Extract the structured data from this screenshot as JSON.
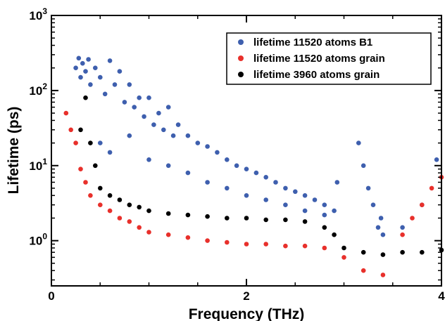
{
  "chart_data": {
    "type": "scatter",
    "xlabel": "Frequency (THz)",
    "ylabel": "Lifetime (ps)",
    "xlim": [
      0,
      4
    ],
    "ylim": [
      0.25,
      1000
    ],
    "y_scale": "log",
    "grid": false,
    "legend_position": "top-right",
    "x_ticks": [
      {
        "value": 0,
        "label": "0"
      },
      {
        "value": 2,
        "label": "2"
      },
      {
        "value": 4,
        "label": "4"
      }
    ],
    "y_ticks": [
      {
        "value": 1,
        "base": "10",
        "exp": "0"
      },
      {
        "value": 10,
        "base": "10",
        "exp": "1"
      },
      {
        "value": 100,
        "base": "10",
        "exp": "2"
      },
      {
        "value": 1000,
        "base": "10",
        "exp": "3"
      }
    ],
    "series": [
      {
        "name": "lifetime 11520 atoms B1",
        "color": "#3e5fae",
        "points": [
          [
            0.25,
            200
          ],
          [
            0.28,
            270
          ],
          [
            0.3,
            150
          ],
          [
            0.32,
            230
          ],
          [
            0.35,
            180
          ],
          [
            0.38,
            260
          ],
          [
            0.4,
            120
          ],
          [
            0.45,
            200
          ],
          [
            0.5,
            150
          ],
          [
            0.55,
            90
          ],
          [
            0.6,
            250
          ],
          [
            0.65,
            120
          ],
          [
            0.7,
            180
          ],
          [
            0.75,
            70
          ],
          [
            0.8,
            120
          ],
          [
            0.85,
            60
          ],
          [
            0.9,
            80
          ],
          [
            0.95,
            45
          ],
          [
            1.0,
            80
          ],
          [
            1.05,
            35
          ],
          [
            1.1,
            50
          ],
          [
            1.15,
            30
          ],
          [
            1.2,
            60
          ],
          [
            1.25,
            25
          ],
          [
            1.3,
            35
          ],
          [
            1.4,
            25
          ],
          [
            1.5,
            20
          ],
          [
            1.6,
            18
          ],
          [
            1.7,
            15
          ],
          [
            1.8,
            12
          ],
          [
            1.9,
            10
          ],
          [
            2.0,
            9
          ],
          [
            2.1,
            8
          ],
          [
            2.2,
            7
          ],
          [
            2.3,
            6
          ],
          [
            2.4,
            5
          ],
          [
            2.5,
            4.5
          ],
          [
            2.6,
            4
          ],
          [
            2.7,
            3.5
          ],
          [
            2.8,
            3
          ],
          [
            2.9,
            2.5
          ],
          [
            2.93,
            6
          ],
          [
            0.5,
            20
          ],
          [
            0.6,
            15
          ],
          [
            0.8,
            25
          ],
          [
            1.0,
            12
          ],
          [
            1.2,
            10
          ],
          [
            1.4,
            8
          ],
          [
            1.6,
            6
          ],
          [
            1.8,
            5
          ],
          [
            2.0,
            4
          ],
          [
            2.2,
            3.5
          ],
          [
            2.4,
            3
          ],
          [
            2.6,
            2.5
          ],
          [
            2.8,
            2.2
          ],
          [
            3.15,
            20
          ],
          [
            3.2,
            10
          ],
          [
            3.25,
            5
          ],
          [
            3.3,
            3
          ],
          [
            3.35,
            1.5
          ],
          [
            3.38,
            2
          ],
          [
            3.4,
            1.2
          ],
          [
            3.6,
            1.5
          ],
          [
            3.8,
            3
          ],
          [
            3.95,
            12
          ]
        ]
      },
      {
        "name": "lifetime 11520 atoms grain",
        "color": "#e8302b",
        "points": [
          [
            0.15,
            50
          ],
          [
            0.2,
            30
          ],
          [
            0.25,
            20
          ],
          [
            0.3,
            9
          ],
          [
            0.35,
            6
          ],
          [
            0.4,
            4
          ],
          [
            0.5,
            3
          ],
          [
            0.6,
            2.5
          ],
          [
            0.7,
            2
          ],
          [
            0.8,
            1.8
          ],
          [
            0.9,
            1.5
          ],
          [
            1.0,
            1.3
          ],
          [
            1.2,
            1.2
          ],
          [
            1.4,
            1.1
          ],
          [
            1.6,
            1.0
          ],
          [
            1.8,
            0.95
          ],
          [
            2.0,
            0.9
          ],
          [
            2.2,
            0.9
          ],
          [
            2.4,
            0.85
          ],
          [
            2.6,
            0.85
          ],
          [
            2.8,
            0.8
          ],
          [
            3.0,
            0.6
          ],
          [
            3.2,
            0.4
          ],
          [
            3.4,
            0.35
          ],
          [
            3.6,
            1.2
          ],
          [
            3.7,
            2
          ],
          [
            3.8,
            3
          ],
          [
            3.9,
            5
          ],
          [
            4.0,
            7
          ]
        ]
      },
      {
        "name": "lifetime 3960 atoms grain",
        "color": "#000000",
        "points": [
          [
            0.3,
            30
          ],
          [
            0.35,
            80
          ],
          [
            0.4,
            20
          ],
          [
            0.45,
            10
          ],
          [
            0.5,
            5
          ],
          [
            0.6,
            4
          ],
          [
            0.7,
            3.5
          ],
          [
            0.8,
            3
          ],
          [
            0.9,
            2.8
          ],
          [
            1.0,
            2.5
          ],
          [
            1.2,
            2.3
          ],
          [
            1.4,
            2.2
          ],
          [
            1.6,
            2.1
          ],
          [
            1.8,
            2.0
          ],
          [
            2.0,
            2.0
          ],
          [
            2.2,
            1.9
          ],
          [
            2.4,
            1.9
          ],
          [
            2.6,
            1.8
          ],
          [
            2.8,
            1.5
          ],
          [
            2.9,
            1.2
          ],
          [
            3.0,
            0.8
          ],
          [
            3.2,
            0.7
          ],
          [
            3.4,
            0.65
          ],
          [
            3.6,
            0.7
          ],
          [
            3.8,
            0.7
          ],
          [
            4.0,
            0.75
          ]
        ]
      }
    ]
  }
}
